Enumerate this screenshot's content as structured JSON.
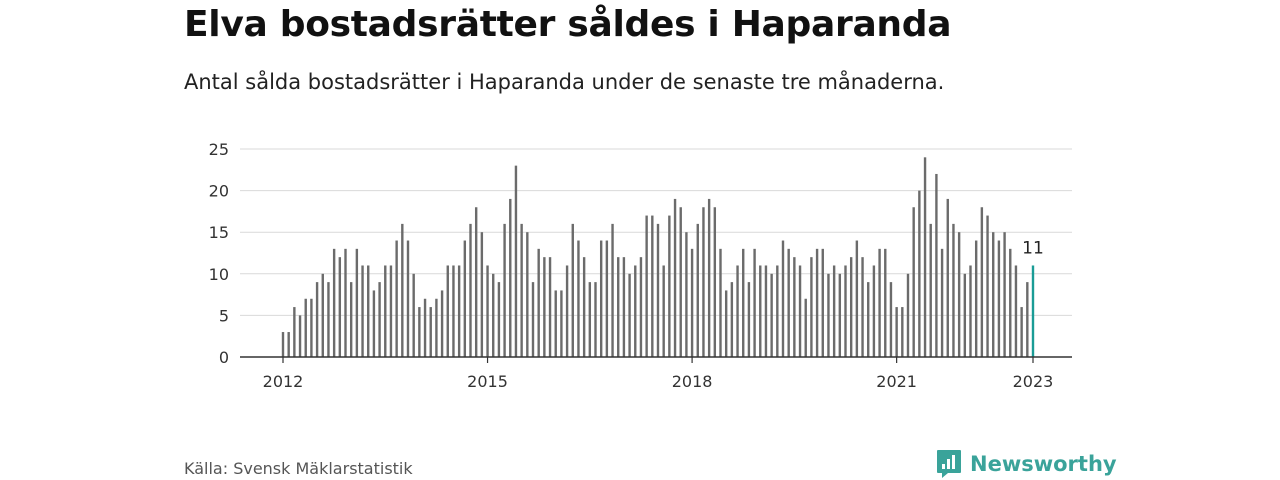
{
  "title": "Elva bostadsrätter såldes i Haparanda",
  "subtitle": "Antal sålda bostadsrätter i Haparanda under de senaste tre månaderna.",
  "source": "Källa: Svensk Mäklarstatistik",
  "brand": {
    "name": "Newsworthy",
    "icon": "newsworthy-logo-icon"
  },
  "colors": {
    "bar": "#6b6b6b",
    "highlight": "#1a9c96",
    "grid": "#d9d9d9",
    "axis": "#333333",
    "brand": "#3aa39a"
  },
  "chart_data": {
    "type": "bar",
    "title": "Elva bostadsrätter såldes i Haparanda",
    "xlabel": "",
    "ylabel": "",
    "ylim": [
      0,
      25
    ],
    "yticks": [
      "0",
      "5",
      "10",
      "15",
      "20",
      "25"
    ],
    "xticks": [
      {
        "label": "2012",
        "index": 0
      },
      {
        "label": "2015",
        "index": 36
      },
      {
        "label": "2018",
        "index": 72
      },
      {
        "label": "2021",
        "index": 108
      },
      {
        "label": "2023",
        "index": 132
      }
    ],
    "start_month": "2012-01",
    "values": [
      3,
      3,
      6,
      5,
      7,
      7,
      9,
      10,
      9,
      13,
      12,
      13,
      9,
      13,
      11,
      11,
      8,
      9,
      11,
      11,
      14,
      16,
      14,
      10,
      6,
      7,
      6,
      7,
      8,
      11,
      11,
      11,
      14,
      16,
      18,
      15,
      11,
      10,
      9,
      16,
      19,
      23,
      16,
      15,
      9,
      13,
      12,
      12,
      8,
      8,
      11,
      16,
      14,
      12,
      9,
      9,
      14,
      14,
      16,
      12,
      12,
      10,
      11,
      12,
      17,
      17,
      16,
      11,
      17,
      19,
      18,
      15,
      13,
      16,
      18,
      19,
      18,
      13,
      8,
      9,
      11,
      13,
      9,
      13,
      11,
      11,
      10,
      11,
      14,
      13,
      12,
      11,
      7,
      12,
      13,
      13,
      10,
      11,
      10,
      11,
      12,
      14,
      12,
      9,
      11,
      13,
      13,
      9,
      6,
      6,
      10,
      18,
      20,
      24,
      16,
      22,
      13,
      19,
      16,
      15,
      10,
      11,
      14,
      18,
      17,
      15,
      14,
      15,
      13,
      11,
      6,
      9,
      11
    ],
    "highlight_index": 132,
    "highlight_label": "11"
  }
}
